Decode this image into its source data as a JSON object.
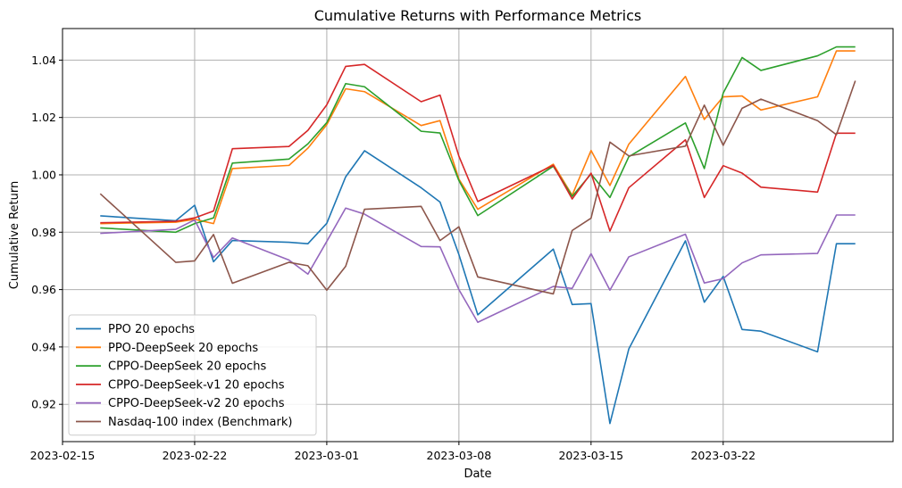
{
  "chart_data": {
    "type": "line",
    "title": "Cumulative Returns with Performance Metrics",
    "xlabel": "Date",
    "ylabel": "Cumulative Return",
    "xlim": [
      "2023-02-15",
      "2023-03-31"
    ],
    "ylim": [
      0.907,
      1.051
    ],
    "x_ticks": [
      "2023-02-15",
      "2023-02-22",
      "2023-03-01",
      "2023-03-08",
      "2023-03-15",
      "2023-03-22"
    ],
    "y_ticks": [
      0.92,
      0.94,
      0.96,
      0.98,
      1.0,
      1.02,
      1.04
    ],
    "y_tick_labels": [
      "0.92",
      "0.94",
      "0.96",
      "0.98",
      "1.00",
      "1.02",
      "1.04"
    ],
    "grid": true,
    "legend_position": "lower-left",
    "dates": [
      "2023-02-17",
      "2023-02-21",
      "2023-02-22",
      "2023-02-23",
      "2023-02-24",
      "2023-02-27",
      "2023-02-28",
      "2023-03-01",
      "2023-03-02",
      "2023-03-03",
      "2023-03-06",
      "2023-03-07",
      "2023-03-08",
      "2023-03-09",
      "2023-03-13",
      "2023-03-14",
      "2023-03-15",
      "2023-03-16",
      "2023-03-17",
      "2023-03-20",
      "2023-03-21",
      "2023-03-22",
      "2023-03-23",
      "2023-03-24",
      "2023-03-27",
      "2023-03-28",
      "2023-03-29"
    ],
    "series": [
      {
        "name": "PPO 20 epochs",
        "color": "#1f77b4",
        "values": [
          0.9857,
          0.984,
          0.9894,
          0.9697,
          0.9771,
          0.9765,
          0.976,
          0.9831,
          0.9993,
          1.0084,
          0.9955,
          0.9905,
          0.9722,
          0.9512,
          0.9741,
          0.9548,
          0.9551,
          0.9133,
          0.9393,
          0.977,
          0.9556,
          0.9646,
          0.9461,
          0.9455,
          0.9383,
          0.976,
          0.976
        ]
      },
      {
        "name": "PPO-DeepSeek 20 epochs",
        "color": "#ff7f0e",
        "values": [
          0.983,
          0.9835,
          0.9845,
          0.983,
          1.0022,
          1.0033,
          1.0093,
          1.0175,
          1.03,
          1.029,
          1.0172,
          1.0189,
          0.9985,
          0.988,
          1.0037,
          0.9929,
          1.0085,
          0.9963,
          1.0107,
          1.0343,
          1.0193,
          1.0272,
          1.0275,
          1.0226,
          1.0272,
          1.0432,
          1.0432
        ]
      },
      {
        "name": "CPPO-DeepSeek 20 epochs",
        "color": "#2ca02c",
        "values": [
          0.9815,
          0.98,
          0.983,
          0.985,
          1.0041,
          1.0055,
          1.0108,
          1.0182,
          1.0318,
          1.0307,
          1.0152,
          1.0146,
          0.998,
          0.9858,
          1.003,
          0.9925,
          1.0003,
          0.9921,
          1.0063,
          1.0181,
          1.0022,
          1.0285,
          1.0409,
          1.0364,
          1.0415,
          1.0446,
          1.0446
        ]
      },
      {
        "name": "CPPO-DeepSeek-v1 20 epochs",
        "color": "#d62728",
        "values": [
          0.9833,
          0.9838,
          0.985,
          0.9874,
          1.0091,
          1.0099,
          1.0155,
          1.0244,
          1.0378,
          1.0385,
          1.0255,
          1.0278,
          1.0065,
          0.9907,
          1.0033,
          0.9916,
          1.0006,
          0.9804,
          0.9955,
          1.0122,
          0.9921,
          1.0032,
          1.0006,
          0.9957,
          0.994,
          1.0145,
          1.0145
        ]
      },
      {
        "name": "CPPO-DeepSeek-v2 20 epochs",
        "color": "#9467bd",
        "values": [
          0.9796,
          0.981,
          0.9843,
          0.9712,
          0.978,
          0.9703,
          0.9654,
          0.9768,
          0.9884,
          0.9863,
          0.975,
          0.9749,
          0.96,
          0.9486,
          0.9611,
          0.9604,
          0.9725,
          0.9598,
          0.9714,
          0.9793,
          0.9623,
          0.9638,
          0.9693,
          0.9721,
          0.9726,
          0.986,
          0.986
        ]
      },
      {
        "name": "Nasdaq-100 index (Benchmark)",
        "color": "#8c564b",
        "values": [
          0.9934,
          0.9695,
          0.97,
          0.9792,
          0.9622,
          0.9695,
          0.9683,
          0.9598,
          0.9681,
          0.988,
          0.989,
          0.9771,
          0.9819,
          0.9644,
          0.9585,
          0.9806,
          0.9849,
          1.0114,
          1.0066,
          1.01,
          1.0243,
          1.0103,
          1.0232,
          1.0264,
          1.0189,
          1.014,
          1.0328
        ]
      }
    ]
  }
}
